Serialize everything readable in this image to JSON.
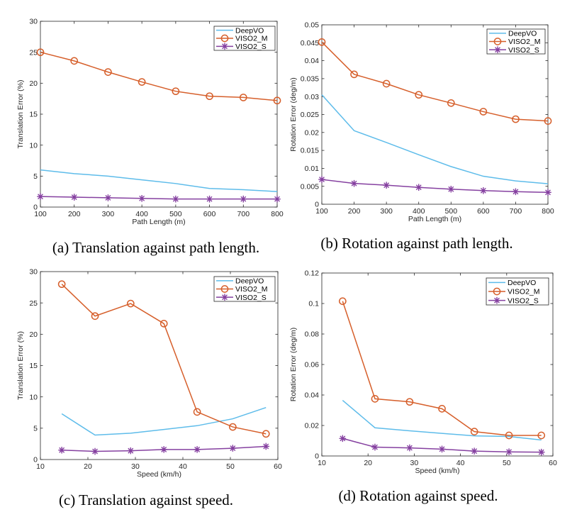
{
  "chart_data": [
    {
      "id": "a",
      "type": "line",
      "caption": "(a) Translation against path length.",
      "xlabel": "Path Length (m)",
      "ylabel": "Translation Error (%)",
      "xlim": [
        100,
        800
      ],
      "ylim": [
        0,
        30
      ],
      "xticks": [
        100,
        200,
        300,
        400,
        500,
        600,
        700,
        800
      ],
      "yticks": [
        0,
        5,
        10,
        15,
        20,
        25,
        30
      ],
      "legend_position": "top-right",
      "series": [
        {
          "name": "DeepVO",
          "color": "#5ebcea",
          "marker": "none",
          "x": [
            100,
            200,
            300,
            400,
            500,
            600,
            700,
            800
          ],
          "y": [
            6.0,
            5.4,
            5.0,
            4.4,
            3.8,
            3.0,
            2.8,
            2.5
          ]
        },
        {
          "name": "VISO2_M",
          "color": "#d65f2b",
          "marker": "circle",
          "x": [
            100,
            200,
            300,
            400,
            500,
            600,
            700,
            800
          ],
          "y": [
            25.0,
            23.6,
            21.8,
            20.2,
            18.7,
            17.9,
            17.7,
            17.2
          ]
        },
        {
          "name": "VISO2_S",
          "color": "#8540a0",
          "marker": "asterisk",
          "x": [
            100,
            200,
            300,
            400,
            500,
            600,
            700,
            800
          ],
          "y": [
            1.7,
            1.6,
            1.5,
            1.4,
            1.3,
            1.3,
            1.3,
            1.3
          ]
        }
      ]
    },
    {
      "id": "b",
      "type": "line",
      "caption": "(b) Rotation against path length.",
      "xlabel": "Path Length (m)",
      "ylabel": "Rotation Error (deg/m)",
      "xlim": [
        100,
        800
      ],
      "ylim": [
        0,
        0.05
      ],
      "xticks": [
        100,
        200,
        300,
        400,
        500,
        600,
        700,
        800
      ],
      "yticks": [
        0,
        0.005,
        0.01,
        0.015,
        0.02,
        0.025,
        0.03,
        0.035,
        0.04,
        0.045,
        0.05
      ],
      "legend_position": "top-right",
      "series": [
        {
          "name": "DeepVO",
          "color": "#5ebcea",
          "marker": "none",
          "x": [
            100,
            200,
            300,
            400,
            500,
            600,
            700,
            800
          ],
          "y": [
            0.0305,
            0.0205,
            0.0172,
            0.0138,
            0.0105,
            0.0078,
            0.0065,
            0.0057
          ]
        },
        {
          "name": "VISO2_M",
          "color": "#d65f2b",
          "marker": "circle",
          "x": [
            100,
            200,
            300,
            400,
            500,
            600,
            700,
            800
          ],
          "y": [
            0.0452,
            0.0362,
            0.0336,
            0.0305,
            0.0282,
            0.0258,
            0.0237,
            0.0232
          ]
        },
        {
          "name": "VISO2_S",
          "color": "#8540a0",
          "marker": "asterisk",
          "x": [
            100,
            200,
            300,
            400,
            500,
            600,
            700,
            800
          ],
          "y": [
            0.0069,
            0.0058,
            0.0053,
            0.0047,
            0.0042,
            0.0038,
            0.0035,
            0.0033
          ]
        }
      ]
    },
    {
      "id": "c",
      "type": "line",
      "caption": "(c) Translation against speed.",
      "xlabel": "Speed (km/h)",
      "ylabel": "Translation Error (%)",
      "xlim": [
        10,
        60
      ],
      "ylim": [
        0,
        30
      ],
      "xticks": [
        10,
        20,
        30,
        40,
        50,
        60
      ],
      "yticks": [
        0,
        5,
        10,
        15,
        20,
        25,
        30
      ],
      "legend_position": "top-right",
      "series": [
        {
          "name": "DeepVO",
          "color": "#5ebcea",
          "marker": "none",
          "x": [
            14.5,
            21.5,
            29,
            36,
            43,
            50.5,
            57.5
          ],
          "y": [
            7.3,
            3.9,
            4.2,
            4.8,
            5.4,
            6.5,
            8.3
          ]
        },
        {
          "name": "VISO2_M",
          "color": "#d65f2b",
          "marker": "circle",
          "x": [
            14.5,
            21.5,
            29,
            36,
            43,
            50.5,
            57.5
          ],
          "y": [
            28.0,
            22.9,
            24.9,
            21.7,
            7.6,
            5.2,
            4.1
          ]
        },
        {
          "name": "VISO2_S",
          "color": "#8540a0",
          "marker": "asterisk",
          "x": [
            14.5,
            21.5,
            29,
            36,
            43,
            50.5,
            57.5
          ],
          "y": [
            1.5,
            1.3,
            1.4,
            1.6,
            1.6,
            1.8,
            2.1
          ]
        }
      ]
    },
    {
      "id": "d",
      "type": "line",
      "caption": "(d) Rotation against speed.",
      "xlabel": "Speed (km/h)",
      "ylabel": "Rotation Error (deg/m)",
      "xlim": [
        10,
        60
      ],
      "ylim": [
        0,
        0.12
      ],
      "xticks": [
        10,
        20,
        30,
        40,
        50,
        60
      ],
      "yticks": [
        0,
        0.02,
        0.04,
        0.06,
        0.08,
        0.1,
        0.12
      ],
      "legend_position": "top-right",
      "series": [
        {
          "name": "DeepVO",
          "color": "#5ebcea",
          "marker": "none",
          "x": [
            14.5,
            21.5,
            29,
            36,
            43,
            50.5,
            57.5
          ],
          "y": [
            0.0365,
            0.0185,
            0.0165,
            0.0148,
            0.0132,
            0.0128,
            0.0105
          ]
        },
        {
          "name": "VISO2_M",
          "color": "#d65f2b",
          "marker": "circle",
          "x": [
            14.5,
            21.5,
            29,
            36,
            43,
            50.5,
            57.5
          ],
          "y": [
            0.1015,
            0.0375,
            0.0355,
            0.031,
            0.016,
            0.0135,
            0.0135
          ]
        },
        {
          "name": "VISO2_S",
          "color": "#8540a0",
          "marker": "asterisk",
          "x": [
            14.5,
            21.5,
            29,
            36,
            43,
            50.5,
            57.5
          ],
          "y": [
            0.0115,
            0.0058,
            0.0053,
            0.0045,
            0.0032,
            0.0027,
            0.0025
          ]
        }
      ]
    }
  ]
}
